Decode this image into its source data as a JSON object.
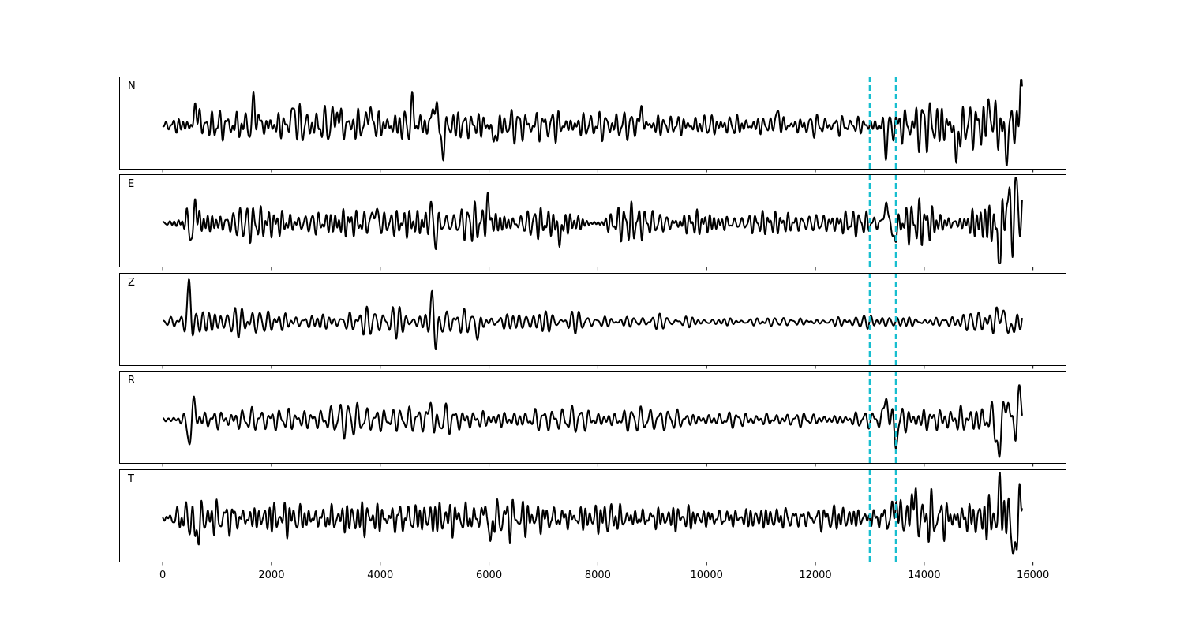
{
  "chart_data": {
    "type": "line",
    "title": "",
    "xlabel": "",
    "ylabel": "",
    "xlim": [
      -800,
      16600
    ],
    "x_ticks": [
      0,
      2000,
      4000,
      6000,
      8000,
      10000,
      12000,
      14000,
      16000
    ],
    "x_tick_labels": [
      "0",
      "2000",
      "4000",
      "6000",
      "8000",
      "10000",
      "12000",
      "14000",
      "16000"
    ],
    "grid": false,
    "trace_color": "#000000",
    "marker_color": "#17becf",
    "marker_lines": [
      13000,
      13480
    ],
    "sample_range": [
      0,
      15800
    ],
    "panels": [
      {
        "label": "N",
        "features": [
          {
            "x": 620,
            "amp": 0.85
          },
          {
            "x": 1700,
            "amp": 0.9
          },
          {
            "x": 2400,
            "amp": 0.7
          },
          {
            "x": 3200,
            "amp": 0.7
          },
          {
            "x": 3800,
            "amp": 0.75
          },
          {
            "x": 4600,
            "amp": 0.7
          },
          {
            "x": 5000,
            "amp": 1.2
          },
          {
            "x": 5150,
            "amp": -1.1
          },
          {
            "x": 6100,
            "amp": -0.8
          },
          {
            "x": 8800,
            "amp": 0.6
          },
          {
            "x": 11300,
            "amp": 0.55
          },
          {
            "x": 13300,
            "amp": -0.85
          },
          {
            "x": 14600,
            "amp": -1.4
          },
          {
            "x": 15200,
            "amp": 0.8
          },
          {
            "x": 15500,
            "amp": -1.1
          },
          {
            "x": 15780,
            "amp": 1.5
          }
        ],
        "noise_level": [
          [
            0,
            0.15
          ],
          [
            500,
            0.55
          ],
          [
            5200,
            0.6
          ],
          [
            8000,
            0.45
          ],
          [
            11000,
            0.35
          ],
          [
            12700,
            0.3
          ],
          [
            13000,
            0.35
          ],
          [
            13500,
            0.55
          ],
          [
            14000,
            0.9
          ],
          [
            15800,
            1.0
          ]
        ]
      },
      {
        "label": "E",
        "features": [
          {
            "x": 480,
            "amp": 0.6
          },
          {
            "x": 520,
            "amp": -1.2
          },
          {
            "x": 600,
            "amp": 0.9
          },
          {
            "x": 3900,
            "amp": 0.7
          },
          {
            "x": 4950,
            "amp": 0.9
          },
          {
            "x": 5000,
            "amp": -1.0
          },
          {
            "x": 5980,
            "amp": 0.8
          },
          {
            "x": 7300,
            "amp": -0.7
          },
          {
            "x": 13300,
            "amp": 0.9
          },
          {
            "x": 13450,
            "amp": -0.8
          },
          {
            "x": 15380,
            "amp": -1.9
          },
          {
            "x": 15520,
            "amp": 1.2
          },
          {
            "x": 15700,
            "amp": 1.3
          },
          {
            "x": 15780,
            "amp": 0.35
          }
        ],
        "noise_level": [
          [
            0,
            0.1
          ],
          [
            600,
            0.5
          ],
          [
            7000,
            0.55
          ],
          [
            11000,
            0.4
          ],
          [
            12800,
            0.35
          ],
          [
            13200,
            0.6
          ],
          [
            14000,
            0.7
          ],
          [
            15800,
            1.0
          ]
        ]
      },
      {
        "label": "Z",
        "features": [
          {
            "x": 500,
            "amp": 1.9
          },
          {
            "x": 540,
            "amp": -0.8
          },
          {
            "x": 4970,
            "amp": 1.0
          },
          {
            "x": 5030,
            "amp": -1.1
          },
          {
            "x": 5800,
            "amp": -0.5
          },
          {
            "x": 15400,
            "amp": 0.5
          },
          {
            "x": 15600,
            "amp": -0.5
          }
        ],
        "noise_level": [
          [
            0,
            0.08
          ],
          [
            500,
            0.45
          ],
          [
            5200,
            0.5
          ],
          [
            6500,
            0.35
          ],
          [
            9000,
            0.22
          ],
          [
            12000,
            0.15
          ],
          [
            13500,
            0.2
          ],
          [
            15000,
            0.35
          ],
          [
            15800,
            0.45
          ]
        ]
      },
      {
        "label": "R",
        "features": [
          {
            "x": 500,
            "amp": -1.3
          },
          {
            "x": 560,
            "amp": 1.0
          },
          {
            "x": 4950,
            "amp": 1.1
          },
          {
            "x": 5000,
            "amp": -0.9
          },
          {
            "x": 13300,
            "amp": 1.0
          },
          {
            "x": 13480,
            "amp": -0.9
          },
          {
            "x": 15380,
            "amp": -2.0
          },
          {
            "x": 15480,
            "amp": 1.3
          },
          {
            "x": 15780,
            "amp": 0.8
          }
        ],
        "noise_level": [
          [
            0,
            0.1
          ],
          [
            600,
            0.5
          ],
          [
            5200,
            0.55
          ],
          [
            8000,
            0.45
          ],
          [
            12000,
            0.3
          ],
          [
            13000,
            0.35
          ],
          [
            13500,
            0.65
          ],
          [
            14500,
            0.7
          ],
          [
            15800,
            1.0
          ]
        ]
      },
      {
        "label": "T",
        "features": [
          {
            "x": 620,
            "amp": -0.9
          },
          {
            "x": 5950,
            "amp": 1.0
          },
          {
            "x": 6000,
            "amp": -1.4
          },
          {
            "x": 13480,
            "amp": 0.7
          },
          {
            "x": 13800,
            "amp": 1.1
          },
          {
            "x": 15400,
            "amp": 1.1
          },
          {
            "x": 15660,
            "amp": -1.9
          },
          {
            "x": 15780,
            "amp": 1.1
          }
        ],
        "noise_level": [
          [
            0,
            0.12
          ],
          [
            500,
            0.55
          ],
          [
            5000,
            0.6
          ],
          [
            6500,
            0.55
          ],
          [
            9000,
            0.45
          ],
          [
            12000,
            0.35
          ],
          [
            13000,
            0.4
          ],
          [
            13500,
            0.65
          ],
          [
            14500,
            0.75
          ],
          [
            15800,
            1.0
          ]
        ]
      }
    ]
  }
}
